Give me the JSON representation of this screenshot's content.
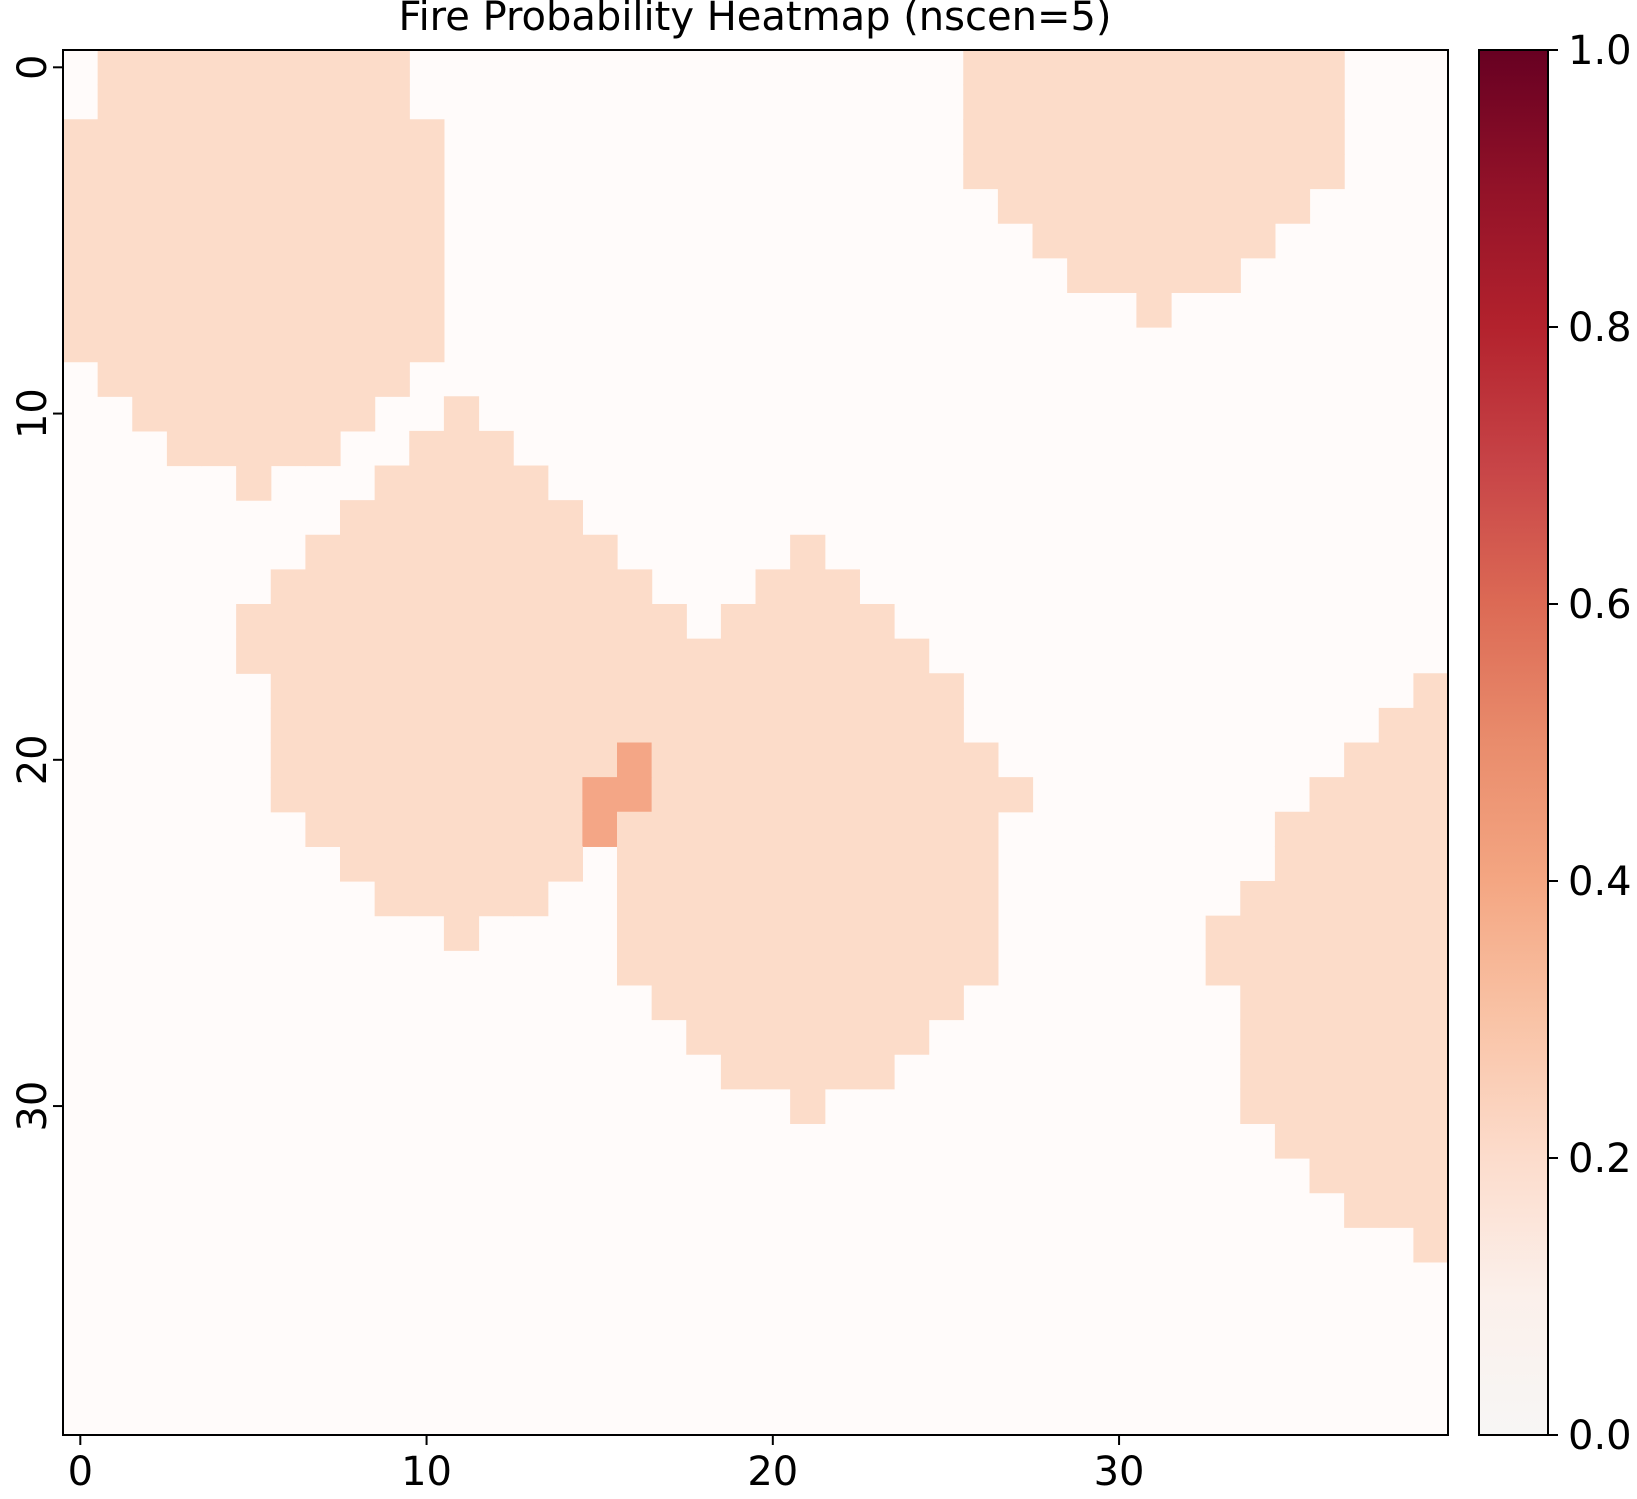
{
  "chart_data": {
    "type": "heatmap",
    "title": "Fire Probability Heatmap (nscen=5)",
    "xlabel": "",
    "ylabel": "",
    "grid_size": [
      40,
      40
    ],
    "xlim": [
      -0.5,
      39.5
    ],
    "ylim": [
      39.5,
      -0.5
    ],
    "x_ticks": [
      0,
      10,
      20,
      30
    ],
    "y_ticks": [
      0,
      10,
      20,
      30
    ],
    "x_tick_labels": [
      "0",
      "10",
      "20",
      "30"
    ],
    "y_tick_labels": [
      "0",
      "10",
      "20",
      "30"
    ],
    "grid": false,
    "colormap": "Reds",
    "colorbar": {
      "range": [
        0.0,
        1.0
      ],
      "ticks": [
        0.0,
        0.2,
        0.4,
        0.6,
        0.8,
        1.0
      ],
      "tick_labels": [
        "0.0",
        "0.2",
        "0.4",
        "0.6",
        "0.8",
        "1.0"
      ],
      "placement": "right"
    },
    "background_value": 0.0,
    "default_region_value": 0.2,
    "regions": [
      {
        "value": 0.2,
        "rows": [
          [
            0,
            1,
            9
          ],
          [
            1,
            1,
            9
          ],
          [
            2,
            0,
            10
          ],
          [
            3,
            0,
            10
          ],
          [
            4,
            0,
            10
          ],
          [
            5,
            0,
            10
          ],
          [
            6,
            0,
            10
          ],
          [
            7,
            0,
            10
          ],
          [
            8,
            0,
            10
          ],
          [
            9,
            1,
            9
          ],
          [
            10,
            2,
            8
          ],
          [
            11,
            3,
            7
          ],
          [
            12,
            5,
            5
          ]
        ]
      },
      {
        "value": 0.2,
        "rows": [
          [
            10,
            11,
            11
          ],
          [
            11,
            10,
            12
          ],
          [
            12,
            9,
            13
          ],
          [
            13,
            8,
            14
          ],
          [
            14,
            7,
            15
          ],
          [
            15,
            6,
            16
          ],
          [
            16,
            5,
            17
          ],
          [
            17,
            5,
            18
          ],
          [
            18,
            6,
            18
          ],
          [
            19,
            6,
            18
          ],
          [
            20,
            6,
            18
          ],
          [
            21,
            6,
            16
          ],
          [
            22,
            7,
            15
          ],
          [
            23,
            8,
            14
          ],
          [
            24,
            9,
            13
          ],
          [
            25,
            11,
            11
          ]
        ]
      },
      {
        "value": 0.2,
        "rows": [
          [
            14,
            21,
            21
          ],
          [
            15,
            20,
            22
          ],
          [
            16,
            19,
            23
          ],
          [
            17,
            18,
            24
          ],
          [
            18,
            18,
            25
          ],
          [
            19,
            18,
            25
          ],
          [
            20,
            18,
            26
          ],
          [
            21,
            17,
            27
          ],
          [
            22,
            16,
            26
          ],
          [
            23,
            16,
            26
          ],
          [
            24,
            16,
            26
          ],
          [
            25,
            16,
            26
          ],
          [
            26,
            16,
            26
          ],
          [
            27,
            17,
            25
          ],
          [
            28,
            18,
            24
          ],
          [
            29,
            19,
            23
          ],
          [
            30,
            21,
            21
          ]
        ]
      },
      {
        "value": 0.2,
        "rows": [
          [
            0,
            26,
            36
          ],
          [
            1,
            26,
            36
          ],
          [
            2,
            26,
            36
          ],
          [
            3,
            26,
            36
          ],
          [
            4,
            27,
            35
          ],
          [
            5,
            28,
            34
          ],
          [
            6,
            29,
            33
          ],
          [
            7,
            31,
            31
          ]
        ]
      },
      {
        "value": 0.2,
        "rows": [
          [
            18,
            39,
            39
          ],
          [
            19,
            38,
            39
          ],
          [
            20,
            37,
            39
          ],
          [
            21,
            36,
            39
          ],
          [
            22,
            35,
            39
          ],
          [
            23,
            35,
            39
          ],
          [
            24,
            34,
            39
          ],
          [
            25,
            33,
            39
          ],
          [
            26,
            33,
            39
          ],
          [
            27,
            34,
            39
          ],
          [
            28,
            34,
            39
          ],
          [
            29,
            34,
            39
          ],
          [
            30,
            34,
            39
          ],
          [
            31,
            35,
            39
          ],
          [
            32,
            36,
            39
          ],
          [
            33,
            37,
            39
          ],
          [
            34,
            39,
            39
          ]
        ]
      },
      {
        "value": 0.4,
        "rows": [
          [
            20,
            16,
            16
          ],
          [
            21,
            15,
            16
          ],
          [
            22,
            15,
            15
          ]
        ]
      }
    ],
    "zero_cells": [
      [
        0,
        0
      ],
      [
        9,
        10
      ],
      [
        10,
        9
      ],
      [
        11,
        8
      ],
      [
        12,
        7
      ],
      [
        12,
        8
      ]
    ]
  }
}
